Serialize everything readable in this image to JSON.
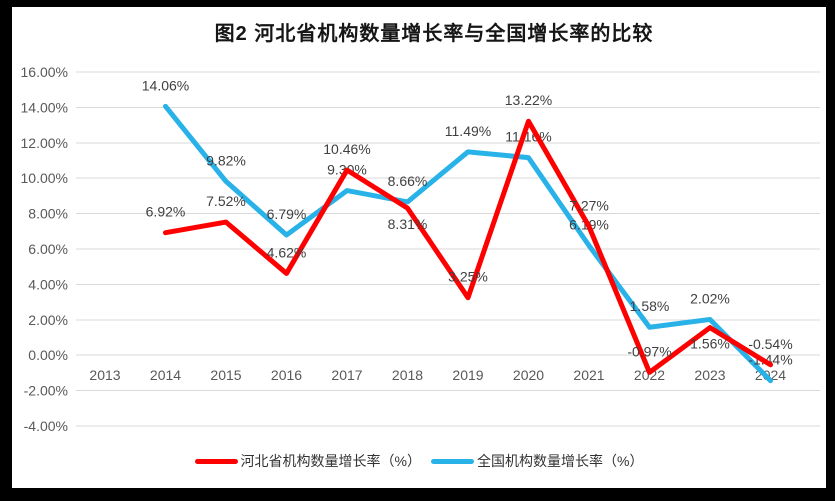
{
  "chart_data": {
    "type": "line",
    "title": "图2 河北省机构数量增长率与全国增长率的比较",
    "xlabel": "",
    "ylabel": "",
    "categories": [
      "2013",
      "2014",
      "2015",
      "2016",
      "2017",
      "2018",
      "2019",
      "2020",
      "2021",
      "2022",
      "2023",
      "2024"
    ],
    "series": [
      {
        "name": "河北省机构数量增长率（%）",
        "color": "#FF0000",
        "values": [
          null,
          6.92,
          7.52,
          4.62,
          10.46,
          8.31,
          3.25,
          13.22,
          7.27,
          -0.97,
          1.56,
          -0.54
        ],
        "labels": [
          null,
          "6.92%",
          "7.52%",
          "4.62%",
          "10.46%",
          "8.31%",
          "3.25%",
          "13.22%",
          "7.27%",
          "-0.97%",
          "1.56%",
          "-0.54%"
        ],
        "labels_below_indices": [
          5,
          10
        ]
      },
      {
        "name": "全国机构数量增长率（%）",
        "color": "#29B2E8",
        "values": [
          null,
          14.06,
          9.82,
          6.79,
          9.3,
          8.66,
          11.49,
          11.16,
          6.19,
          1.58,
          2.02,
          -1.44
        ],
        "labels": [
          null,
          "14.06%",
          "9.82%",
          "6.79%",
          "9.30%",
          "8.66%",
          "11.49%",
          "11.16%",
          "6.19%",
          "1.58%",
          "2.02%",
          "-1.44%"
        ],
        "labels_below_indices": []
      }
    ],
    "y_axis": {
      "min": -4,
      "max": 16,
      "ticks": [
        {
          "value": 16,
          "label": "16.00%"
        },
        {
          "value": 14,
          "label": "14.00%"
        },
        {
          "value": 12,
          "label": "12.00%"
        },
        {
          "value": 10,
          "label": "10.00%"
        },
        {
          "value": 8,
          "label": "8.00%"
        },
        {
          "value": 6,
          "label": "6.00%"
        },
        {
          "value": 4,
          "label": "4.00%"
        },
        {
          "value": 2,
          "label": "2.00%"
        },
        {
          "value": 0,
          "label": "0.00%"
        },
        {
          "value": -2,
          "label": "-2.00%"
        },
        {
          "value": -4,
          "label": "-4.00%"
        }
      ]
    },
    "grid": true,
    "legend": {
      "position": "bottom"
    },
    "colors": {
      "grid": "#D9D9D9",
      "axis_text": "#595959",
      "data_label_text": "#404040",
      "title_text": "#161616",
      "frame_border": "#000000"
    }
  }
}
